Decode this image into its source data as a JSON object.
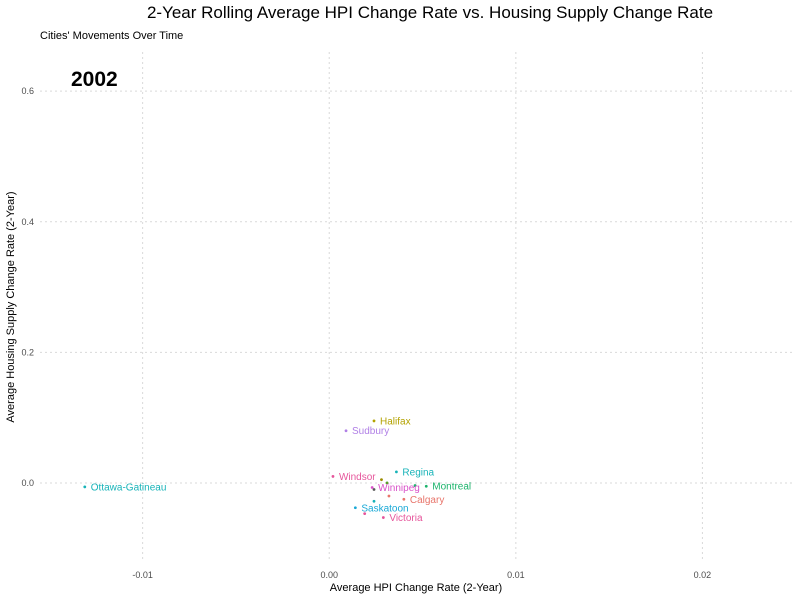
{
  "chart_data": {
    "type": "scatter",
    "title": "2-Year Rolling Average HPI Change Rate vs. Housing Supply Change Rate",
    "subtitle": "Cities' Movements Over Time",
    "frame_label": "2002",
    "xlabel": "Average HPI Change Rate (2-Year)",
    "ylabel": "Average Housing Supply Change Rate (2-Year)",
    "xlim": [
      -0.0155,
      0.0248
    ],
    "ylim": [
      -0.118,
      0.66
    ],
    "x_ticks": [
      -0.01,
      0.0,
      0.01,
      0.02
    ],
    "x_tick_labels": [
      "-0.01",
      "0.00",
      "0.01",
      "0.02"
    ],
    "y_ticks": [
      0.0,
      0.2,
      0.4,
      0.6
    ],
    "y_tick_labels": [
      "0.0",
      "0.2",
      "0.4",
      "0.6"
    ],
    "grid": true,
    "points": [
      {
        "label": "Halifax",
        "x": 0.0024,
        "y": 0.095,
        "color": "#b3a200"
      },
      {
        "label": "Sudbury",
        "x": 0.0009,
        "y": 0.08,
        "color": "#b07fe6"
      },
      {
        "label": "Regina",
        "x": 0.0036,
        "y": 0.017,
        "color": "#17b3b8"
      },
      {
        "label": "Windsor",
        "x": 0.0002,
        "y": 0.01,
        "color": "#e6559b"
      },
      {
        "label": "Ottawa-Gatineau",
        "x": -0.0131,
        "y": -0.006,
        "color": "#17b3b8"
      },
      {
        "label": "Winnipeg",
        "x": 0.0023,
        "y": -0.007,
        "color": "#d952c9"
      },
      {
        "label": "Montreal",
        "x": 0.0052,
        "y": -0.005,
        "color": "#1bb36b"
      },
      {
        "label": "Calgary",
        "x": 0.004,
        "y": -0.025,
        "color": "#e8756b"
      },
      {
        "label": "Saskatoon",
        "x": 0.0014,
        "y": -0.038,
        "color": "#1aa9d6"
      },
      {
        "label": "Victoria",
        "x": 0.0029,
        "y": -0.053,
        "color": "#e6559b"
      }
    ],
    "unlabeled_points": [
      {
        "x": 0.0028,
        "y": 0.005,
        "color": "#9a8c00"
      },
      {
        "x": 0.0031,
        "y": 0.0,
        "color": "#5aa02c"
      },
      {
        "x": 0.0024,
        "y": -0.01,
        "color": "#555555"
      },
      {
        "x": 0.0046,
        "y": -0.004,
        "color": "#1bb36b"
      },
      {
        "x": 0.0032,
        "y": -0.02,
        "color": "#e8756b"
      },
      {
        "x": 0.0024,
        "y": -0.028,
        "color": "#17b3b8"
      },
      {
        "x": 0.0019,
        "y": -0.047,
        "color": "#e6559b"
      }
    ]
  }
}
